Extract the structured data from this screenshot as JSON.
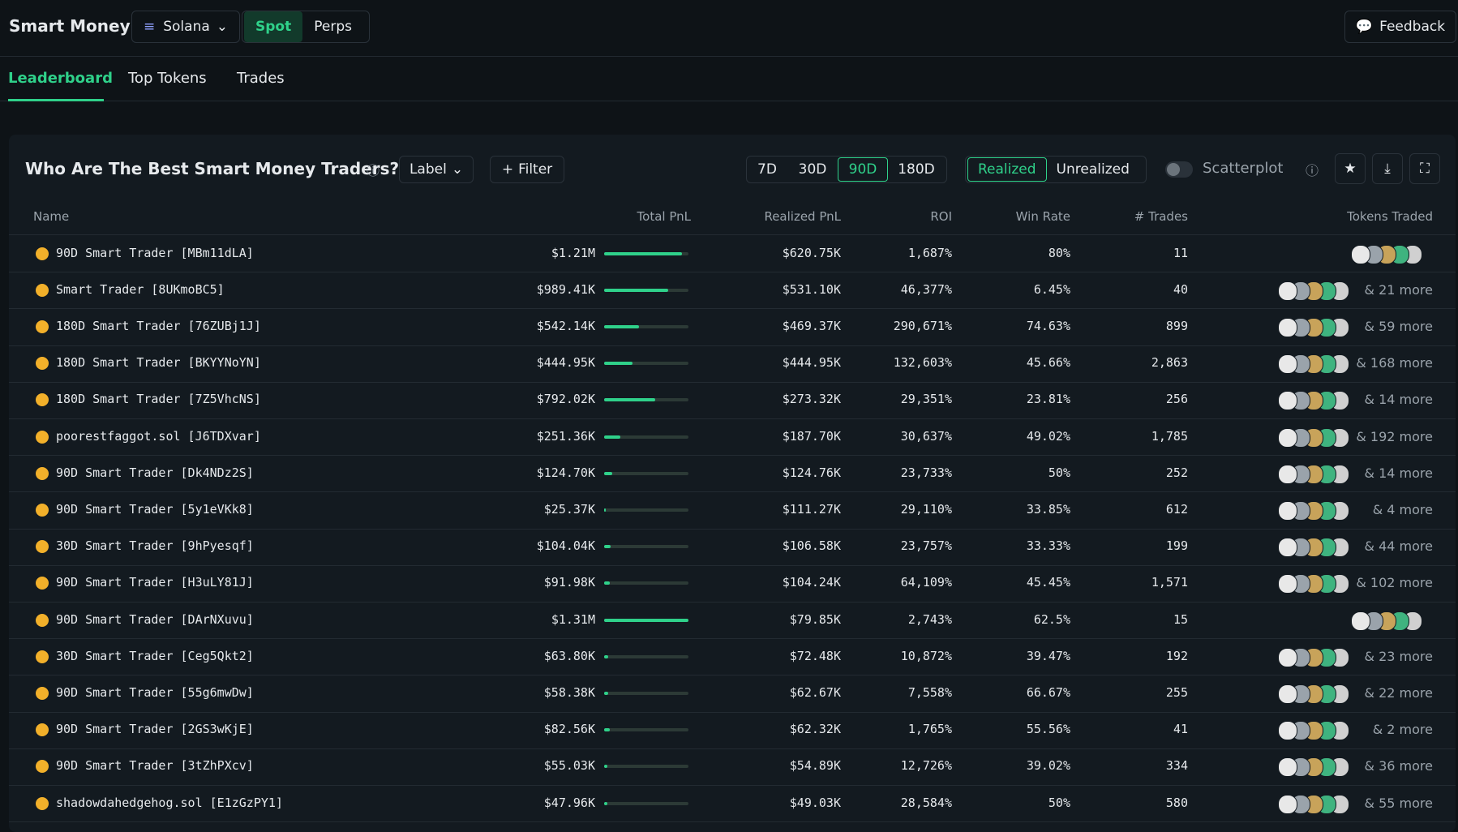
{
  "header": {
    "title": "Smart Money",
    "chain": "Solana",
    "modes": [
      "Spot",
      "Perps"
    ],
    "feedback": "Feedback"
  },
  "tabs": [
    "Leaderboard",
    "Top Tokens",
    "Trades"
  ],
  "panel": {
    "title": "Who Are The Best Smart Money Traders?",
    "label": "Label",
    "filter": "Filter",
    "periods": [
      "7D",
      "30D",
      "90D",
      "180D"
    ],
    "pnl_types": [
      "Realized",
      "Unrealized"
    ],
    "scatterplot": "Scatterplot"
  },
  "table": {
    "columns": [
      "Name",
      "Total PnL",
      "Realized PnL",
      "ROI",
      "Win Rate",
      "# Trades",
      "Tokens Traded"
    ],
    "rows": [
      [
        "90D Smart Trader [MBm11dLA]",
        "$620.75K",
        "1,687%",
        "80%",
        "11",
        null
      ],
      [
        "Smart Trader [8UKmoBC5]",
        "$531.10K",
        "46,377%",
        "6.45%",
        "40",
        "& 21 more"
      ],
      [
        "180D Smart Trader [76ZUBj1J]",
        "$469.37K",
        "290,671%",
        "74.63%",
        "899",
        "& 59 more"
      ],
      [
        "180D Smart Trader [BKYYNoYN]",
        "$444.95K",
        "132,603%",
        "45.66%",
        "2,863",
        "& 168 more"
      ],
      [
        "180D Smart Trader [7Z5VhcNS]",
        "$273.32K",
        "29,351%",
        "23.81%",
        "256",
        "& 14 more"
      ],
      [
        "poorestfaggot.sol [J6TDXvar]",
        "$187.70K",
        "30,637%",
        "49.02%",
        "1,785",
        "& 192 more"
      ],
      [
        "90D Smart Trader [Dk4NDz2S]",
        "$124.76K",
        "23,733%",
        "50%",
        "252",
        "& 14 more"
      ],
      [
        "90D Smart Trader [5y1eVKk8]",
        "$111.27K",
        "29,110%",
        "33.85%",
        "612",
        "& 4 more"
      ],
      [
        "30D Smart Trader [9hPyesqf]",
        "$106.58K",
        "23,757%",
        "33.33%",
        "199",
        "& 44 more"
      ],
      [
        "90D Smart Trader [H3uLY81J]",
        "$104.24K",
        "64,109%",
        "45.45%",
        "1,571",
        "& 102 more"
      ],
      [
        "90D Smart Trader [DArNXuvu]",
        "$79.85K",
        "2,743%",
        "62.5%",
        "15",
        null
      ],
      [
        "30D Smart Trader [Ceg5Qkt2]",
        "$72.48K",
        "10,872%",
        "39.47%",
        "192",
        "& 23 more"
      ],
      [
        "90D Smart Trader [55g6mwDw]",
        "$62.67K",
        "7,558%",
        "66.67%",
        "255",
        "& 22 more"
      ],
      [
        "90D Smart Trader [2GS3wKjE]",
        "$62.32K",
        "1,765%",
        "55.56%",
        "41",
        "& 2 more"
      ],
      [
        "90D Smart Trader [3tZhPXcv]",
        "$54.89K",
        "12,726%",
        "39.02%",
        "334",
        "& 36 more"
      ],
      [
        "shadowdahedgehog.sol [E1zGzPY1]",
        "$49.03K",
        "28,584%",
        "50%",
        "580",
        "& 55 more"
      ]
    ],
    "total_pnl": {
      "values": [
        1210000,
        989410,
        542140,
        444950,
        792020,
        251360,
        124700,
        25370,
        104040,
        91980,
        1310000,
        63800,
        58380,
        82560,
        55030,
        47960
      ],
      "value_labels": [
        "$1.21M",
        "$989.41K",
        "$542.14K",
        "$444.95K",
        "$792.02K",
        "$251.36K",
        "$124.70K",
        "$25.37K",
        "$104.04K",
        "$91.98K",
        "$1.31M",
        "$63.80K",
        "$58.38K",
        "$82.56K",
        "$55.03K",
        "$47.96K"
      ]
    }
  }
}
